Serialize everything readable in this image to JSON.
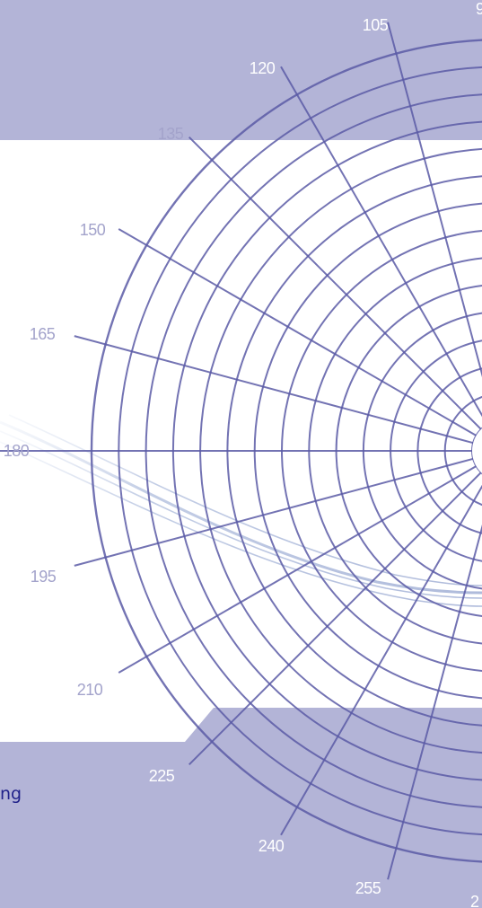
{
  "colors": {
    "band": "#b2b3d6",
    "panel": "#ffffff",
    "grid_line": "#5a5aa6",
    "grid_line_light": "#8a8ac6",
    "label_on_white": "#a3a3cb",
    "label_on_band": "#ffffff",
    "swoosh": "#9fb0d6",
    "caption": "#20228a"
  },
  "polar_grid": {
    "ring_count": 15,
    "spoke_step_degrees": 15
  },
  "angle_labels": [
    {
      "angle": 90,
      "text": "9"
    },
    {
      "angle": 105,
      "text": "105"
    },
    {
      "angle": 120,
      "text": "120"
    },
    {
      "angle": 135,
      "text": "135"
    },
    {
      "angle": 150,
      "text": "150"
    },
    {
      "angle": 165,
      "text": "165"
    },
    {
      "angle": 180,
      "text": "180"
    },
    {
      "angle": 195,
      "text": "195"
    },
    {
      "angle": 210,
      "text": "210"
    },
    {
      "angle": 225,
      "text": "225"
    },
    {
      "angle": 240,
      "text": "240"
    },
    {
      "angle": 255,
      "text": "255"
    },
    {
      "angle": 270,
      "text": "2"
    }
  ],
  "caption": {
    "text": "ng"
  }
}
